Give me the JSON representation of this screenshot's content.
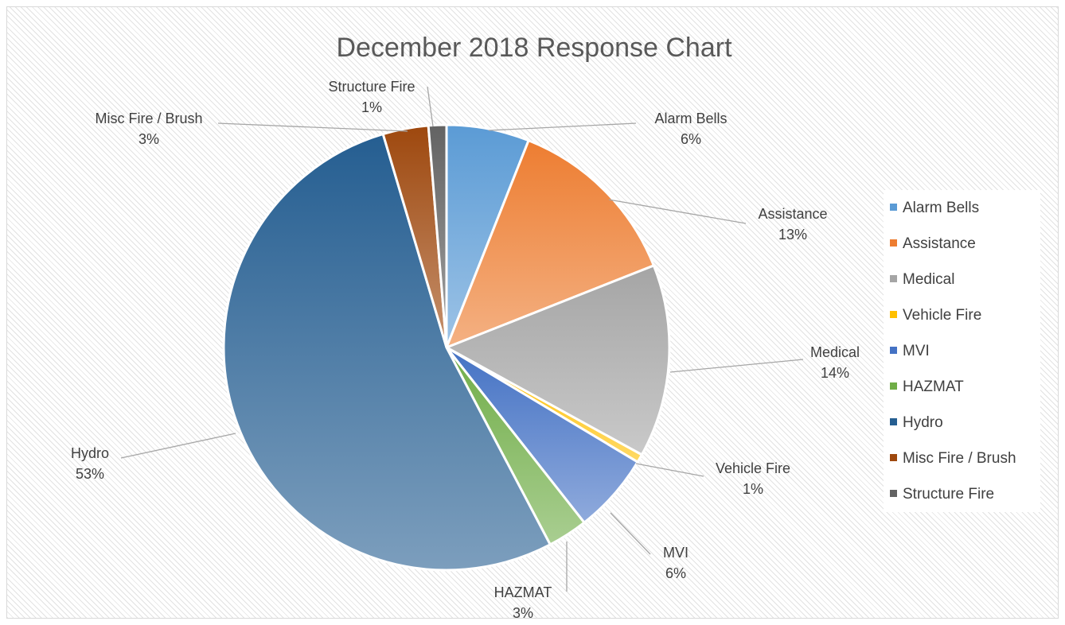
{
  "chart_data": {
    "type": "pie",
    "title": "December 2018 Response Chart",
    "legend_position": "right",
    "slices": [
      {
        "label": "Alarm Bells",
        "value": 6,
        "display": "6%",
        "color": "#5b9bd5"
      },
      {
        "label": "Assistance",
        "value": 13,
        "display": "13%",
        "color": "#ed7d31"
      },
      {
        "label": "Medical",
        "value": 14,
        "display": "14%",
        "color": "#a5a5a5"
      },
      {
        "label": "Vehicle Fire",
        "value": 0.6,
        "display": "1%",
        "color": "#ffc000"
      },
      {
        "label": "MVI",
        "value": 5.8,
        "display": "6%",
        "color": "#4472c4"
      },
      {
        "label": "HAZMAT",
        "value": 2.9,
        "display": "3%",
        "color": "#70ad47"
      },
      {
        "label": "Hydro",
        "value": 53.1,
        "display": "53%",
        "color": "#255e91"
      },
      {
        "label": "Misc Fire / Brush",
        "value": 3.3,
        "display": "3%",
        "color": "#9e480e"
      },
      {
        "label": "Structure Fire",
        "value": 1.3,
        "display": "1%",
        "color": "#636363"
      }
    ]
  }
}
